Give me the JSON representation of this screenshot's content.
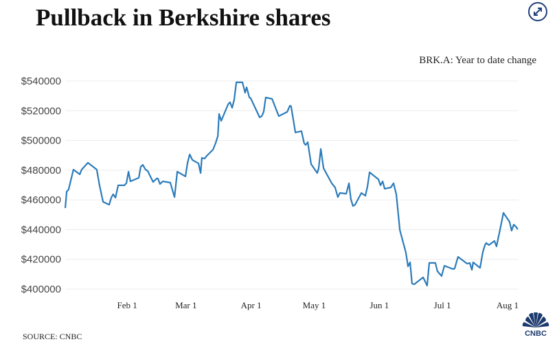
{
  "header": {
    "title": "Pullback in Berkshire shares",
    "expand_icon": "expand-arrows-icon"
  },
  "footer": {
    "source": "SOURCE: CNBC",
    "logo_text": "CNBC"
  },
  "chart_data": {
    "type": "line",
    "title": "Pullback in Berkshire shares",
    "subtitle": "BRK.A: Year to date change",
    "xlabel": "",
    "ylabel": "",
    "x_unit": "day of year",
    "xlim": [
      3.2,
      219
    ],
    "ylim": [
      400000,
      540000
    ],
    "y_ticks": [
      400000,
      420000,
      440000,
      460000,
      480000,
      500000,
      520000,
      540000
    ],
    "y_tick_labels": [
      "$400000",
      "$420000",
      "$440000",
      "$460000",
      "$480000",
      "$500000",
      "$520000",
      "$540000"
    ],
    "x_ticks": [
      32,
      60,
      91,
      121,
      152,
      182,
      213
    ],
    "x_tick_labels": [
      "Feb 1",
      "Mar 1",
      "Apr 1",
      "May 1",
      "Jun 1",
      "Jul 1",
      "Aug 1"
    ],
    "grid": true,
    "color": "#2b7bba",
    "series": [
      {
        "name": "BRK.A",
        "points": [
          [
            3.2,
            454500
          ],
          [
            3.9,
            465600
          ],
          [
            4.8,
            467000
          ],
          [
            7.1,
            480400
          ],
          [
            10.1,
            477200
          ],
          [
            11.0,
            480400
          ],
          [
            14.0,
            485000
          ],
          [
            18.2,
            480400
          ],
          [
            19.5,
            469800
          ],
          [
            21.2,
            458700
          ],
          [
            24.1,
            456800
          ],
          [
            25.1,
            461500
          ],
          [
            26.0,
            463800
          ],
          [
            27.1,
            461500
          ],
          [
            28.4,
            469800
          ],
          [
            31.3,
            469800
          ],
          [
            32.3,
            471200
          ],
          [
            33.3,
            479000
          ],
          [
            34.2,
            472500
          ],
          [
            38.2,
            474900
          ],
          [
            39.1,
            482300
          ],
          [
            40.1,
            483600
          ],
          [
            41.4,
            480400
          ],
          [
            42.4,
            479500
          ],
          [
            45.0,
            472100
          ],
          [
            46.7,
            474400
          ],
          [
            47.3,
            474400
          ],
          [
            48.3,
            470700
          ],
          [
            49.6,
            472500
          ],
          [
            53.2,
            471600
          ],
          [
            54.5,
            465200
          ],
          [
            55.2,
            461900
          ],
          [
            56.5,
            479000
          ],
          [
            60.4,
            475800
          ],
          [
            61.4,
            485000
          ],
          [
            62.4,
            490600
          ],
          [
            63.7,
            486900
          ],
          [
            66.6,
            484600
          ],
          [
            67.6,
            478100
          ],
          [
            68.2,
            488300
          ],
          [
            69.5,
            487800
          ],
          [
            70.5,
            489600
          ],
          [
            73.5,
            493800
          ],
          [
            74.8,
            498400
          ],
          [
            75.8,
            503000
          ],
          [
            76.4,
            517800
          ],
          [
            77.4,
            513200
          ],
          [
            80.7,
            524300
          ],
          [
            81.6,
            525700
          ],
          [
            82.6,
            522000
          ],
          [
            83.6,
            527500
          ],
          [
            84.6,
            539100
          ],
          [
            87.5,
            539100
          ],
          [
            88.8,
            532100
          ],
          [
            89.5,
            535800
          ],
          [
            90.8,
            528900
          ],
          [
            91.4,
            528500
          ],
          [
            95.7,
            515500
          ],
          [
            96.7,
            516400
          ],
          [
            97.6,
            519200
          ],
          [
            98.6,
            528900
          ],
          [
            101.6,
            528000
          ],
          [
            104.8,
            516400
          ],
          [
            108.8,
            519200
          ],
          [
            110.1,
            523400
          ],
          [
            110.7,
            522900
          ],
          [
            112.7,
            505400
          ],
          [
            115.6,
            506300
          ],
          [
            116.9,
            498000
          ],
          [
            117.6,
            497000
          ],
          [
            118.6,
            498900
          ],
          [
            120.2,
            484100
          ],
          [
            123.1,
            478100
          ],
          [
            123.8,
            481300
          ],
          [
            124.8,
            494300
          ],
          [
            126.1,
            481300
          ],
          [
            130.0,
            471200
          ],
          [
            131.6,
            468400
          ],
          [
            132.9,
            461900
          ],
          [
            133.9,
            464700
          ],
          [
            136.9,
            464200
          ],
          [
            138.2,
            471200
          ],
          [
            139.1,
            460500
          ],
          [
            140.1,
            455900
          ],
          [
            141.1,
            456800
          ],
          [
            144.1,
            464700
          ],
          [
            146.0,
            462800
          ],
          [
            147.0,
            468900
          ],
          [
            148.0,
            478600
          ],
          [
            152.2,
            473900
          ],
          [
            153.2,
            469800
          ],
          [
            154.2,
            472500
          ],
          [
            155.2,
            467500
          ],
          [
            158.1,
            468400
          ],
          [
            159.4,
            471200
          ],
          [
            160.7,
            463800
          ],
          [
            162.4,
            439700
          ],
          [
            165.3,
            424500
          ],
          [
            166.3,
            415300
          ],
          [
            167.3,
            418000
          ],
          [
            168.2,
            403700
          ],
          [
            169.2,
            403200
          ],
          [
            173.5,
            407900
          ],
          [
            175.4,
            402300
          ],
          [
            176.4,
            417600
          ],
          [
            179.3,
            417600
          ],
          [
            180.3,
            412000
          ],
          [
            182.3,
            408800
          ],
          [
            183.6,
            415700
          ],
          [
            187.8,
            413400
          ],
          [
            188.5,
            413900
          ],
          [
            190.1,
            421700
          ],
          [
            194.4,
            417100
          ],
          [
            195.7,
            417600
          ],
          [
            196.7,
            412900
          ],
          [
            197.3,
            418000
          ],
          [
            200.6,
            414300
          ],
          [
            201.9,
            425000
          ],
          [
            202.9,
            429600
          ],
          [
            203.5,
            431000
          ],
          [
            204.8,
            429600
          ],
          [
            207.4,
            432400
          ],
          [
            208.4,
            428700
          ],
          [
            210.4,
            442100
          ],
          [
            211.7,
            451300
          ],
          [
            214.6,
            445300
          ],
          [
            215.6,
            439300
          ],
          [
            216.6,
            443400
          ],
          [
            217.9,
            441600
          ],
          [
            218.5,
            440200
          ]
        ]
      }
    ]
  }
}
